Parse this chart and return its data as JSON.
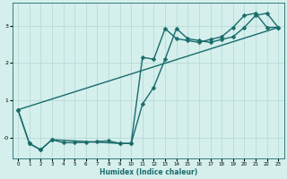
{
  "xlabel": "Humidex (Indice chaleur)",
  "xlim": [
    -0.5,
    23.5
  ],
  "ylim": [
    -0.55,
    3.6
  ],
  "xticks": [
    0,
    1,
    2,
    3,
    4,
    5,
    6,
    7,
    8,
    9,
    10,
    11,
    12,
    13,
    14,
    15,
    16,
    17,
    18,
    19,
    20,
    21,
    22,
    23
  ],
  "yticks": [
    0,
    1,
    2,
    3
  ],
  "ytick_labels": [
    "-0",
    "1",
    "2",
    "3"
  ],
  "bg_color": "#d4efec",
  "grid_color": "#b2d8d4",
  "line_color": "#1a6b6b",
  "curve1_x": [
    0,
    1,
    2,
    3,
    4,
    5,
    6,
    7,
    8,
    9,
    10,
    11,
    12,
    13,
    14,
    15,
    16,
    17,
    18,
    19,
    20,
    21,
    22,
    23
  ],
  "curve1_y": [
    0.75,
    -0.15,
    -0.32,
    -0.05,
    -0.13,
    -0.13,
    -0.12,
    -0.1,
    -0.08,
    -0.15,
    -0.15,
    0.9,
    1.35,
    2.1,
    2.92,
    2.65,
    2.6,
    2.55,
    2.63,
    2.7,
    2.95,
    3.27,
    3.33,
    2.95
  ],
  "curve2_x": [
    0,
    1,
    2,
    3,
    9,
    10,
    11,
    12,
    13,
    14,
    15,
    16,
    17,
    18,
    19,
    20,
    21,
    22,
    23
  ],
  "curve2_y": [
    0.75,
    -0.15,
    -0.32,
    -0.05,
    -0.15,
    -0.15,
    2.15,
    2.1,
    2.92,
    2.65,
    2.6,
    2.55,
    2.63,
    2.7,
    2.95,
    3.27,
    3.33,
    2.95,
    2.95
  ],
  "curve3_x": [
    0,
    23
  ],
  "curve3_y": [
    0.75,
    2.95
  ],
  "marker": "D",
  "markersize": 2.5,
  "linewidth": 1.0
}
